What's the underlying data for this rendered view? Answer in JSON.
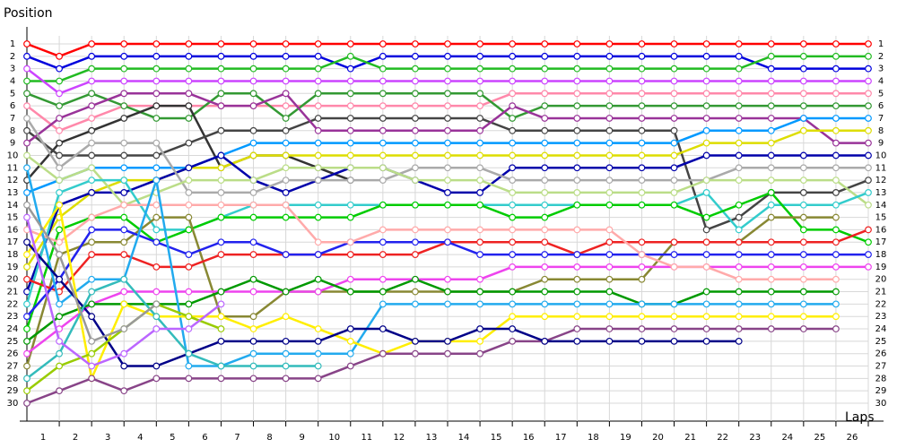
{
  "chart_data": {
    "type": "line",
    "y_axis_title": "Position",
    "x_axis_title": "Laps",
    "xlim": [
      0,
      26
    ],
    "xticks": [
      1,
      2,
      3,
      4,
      5,
      6,
      7,
      8,
      9,
      10,
      11,
      12,
      13,
      14,
      15,
      16,
      17,
      18,
      19,
      20,
      21,
      22,
      23,
      24,
      25,
      26
    ],
    "ylim": [
      1,
      30
    ],
    "y_reversed": true,
    "yticks": [
      1,
      2,
      3,
      4,
      5,
      6,
      7,
      8,
      9,
      10,
      11,
      12,
      13,
      14,
      15,
      16,
      17,
      18,
      19,
      20,
      21,
      22,
      23,
      24,
      25,
      26,
      27,
      28,
      29,
      30
    ],
    "grid": true,
    "series": [
      {
        "color": "#ff0000",
        "values": [
          1,
          2,
          1,
          1,
          1,
          1,
          1,
          1,
          1,
          1,
          1,
          1,
          1,
          1,
          1,
          1,
          1,
          1,
          1,
          1,
          1,
          1,
          1,
          1,
          1,
          1,
          1
        ]
      },
      {
        "color": "#0000dd",
        "values": [
          2,
          3,
          2,
          2,
          2,
          2,
          2,
          2,
          2,
          2,
          3,
          2,
          2,
          2,
          2,
          2,
          2,
          2,
          2,
          2,
          2,
          2,
          2,
          3,
          3,
          3,
          3
        ]
      },
      {
        "color": "#22bb22",
        "values": [
          4,
          4,
          3,
          3,
          3,
          3,
          3,
          3,
          3,
          3,
          2,
          3,
          3,
          3,
          3,
          3,
          3,
          3,
          3,
          3,
          3,
          3,
          3,
          2,
          2,
          2,
          2
        ]
      },
      {
        "color": "#cc44ff",
        "values": [
          3,
          5,
          4,
          4,
          4,
          4,
          4,
          4,
          4,
          4,
          4,
          4,
          4,
          4,
          4,
          4,
          4,
          4,
          4,
          4,
          4,
          4,
          4,
          4,
          4,
          4,
          4
        ]
      },
      {
        "color": "#ff88aa",
        "values": [
          6,
          8,
          7,
          6,
          6,
          6,
          6,
          6,
          6,
          6,
          6,
          6,
          6,
          6,
          6,
          5,
          5,
          5,
          5,
          5,
          5,
          5,
          5,
          5,
          5,
          5,
          5
        ]
      },
      {
        "color": "#339933",
        "values": [
          5,
          6,
          5,
          6,
          7,
          7,
          5,
          5,
          7,
          5,
          5,
          5,
          5,
          5,
          5,
          7,
          6,
          6,
          6,
          6,
          6,
          6,
          6,
          6,
          6,
          6,
          6
        ]
      },
      {
        "color": "#333333",
        "values": [
          12,
          9,
          8,
          7,
          6,
          6,
          11,
          10,
          10,
          11,
          12,
          null,
          null,
          null,
          null,
          null,
          null,
          null,
          null,
          null,
          null,
          null,
          null,
          null,
          null,
          null,
          null
        ]
      },
      {
        "color": "#444444",
        "values": [
          8,
          10,
          10,
          10,
          10,
          9,
          8,
          8,
          8,
          7,
          7,
          7,
          7,
          7,
          7,
          8,
          8,
          8,
          8,
          8,
          8,
          16,
          15,
          13,
          13,
          13,
          12
        ]
      },
      {
        "color": "#993399",
        "values": [
          9,
          7,
          6,
          5,
          5,
          5,
          6,
          6,
          5,
          8,
          8,
          8,
          8,
          8,
          8,
          6,
          7,
          7,
          7,
          7,
          7,
          7,
          7,
          7,
          7,
          9,
          9
        ]
      },
      {
        "color": "#0099ff",
        "values": [
          13,
          12,
          11,
          11,
          11,
          11,
          10,
          9,
          9,
          9,
          9,
          9,
          9,
          9,
          9,
          9,
          9,
          9,
          9,
          9,
          9,
          8,
          8,
          8,
          7,
          7,
          7
        ]
      },
      {
        "color": "#dddd00",
        "values": [
          19,
          15,
          13,
          12,
          12,
          11,
          11,
          10,
          10,
          10,
          10,
          10,
          10,
          10,
          10,
          10,
          10,
          10,
          10,
          10,
          10,
          9,
          9,
          9,
          8,
          8,
          8
        ]
      },
      {
        "color": "#0000aa",
        "values": [
          21,
          14,
          13,
          13,
          12,
          11,
          10,
          12,
          13,
          12,
          11,
          11,
          12,
          13,
          13,
          11,
          11,
          11,
          11,
          11,
          11,
          10,
          10,
          10,
          10,
          10,
          10
        ]
      },
      {
        "color": "#aaaaaa",
        "values": [
          7,
          11,
          9,
          9,
          9,
          13,
          13,
          13,
          12,
          12,
          12,
          12,
          11,
          11,
          11,
          12,
          12,
          12,
          12,
          12,
          12,
          12,
          11,
          11,
          11,
          11,
          11
        ]
      },
      {
        "color": "#bbdd88",
        "values": [
          10,
          12,
          11,
          14,
          13,
          12,
          12,
          12,
          11,
          11,
          11,
          11,
          12,
          12,
          12,
          13,
          13,
          13,
          13,
          13,
          13,
          12,
          12,
          12,
          12,
          12,
          14
        ]
      },
      {
        "color": "#33cccc",
        "values": [
          22,
          13,
          12,
          12,
          16,
          16,
          15,
          14,
          14,
          14,
          14,
          14,
          14,
          14,
          14,
          14,
          14,
          14,
          14,
          14,
          14,
          13,
          16,
          14,
          14,
          14,
          13
        ]
      },
      {
        "color": "#00cc00",
        "values": [
          24,
          16,
          15,
          15,
          17,
          16,
          15,
          15,
          15,
          15,
          15,
          14,
          14,
          14,
          14,
          15,
          15,
          14,
          14,
          14,
          14,
          15,
          14,
          13,
          16,
          16,
          17
        ]
      },
      {
        "color": "#888833",
        "values": [
          27,
          18,
          17,
          17,
          15,
          15,
          23,
          23,
          21,
          21,
          21,
          21,
          21,
          21,
          21,
          21,
          20,
          20,
          20,
          20,
          17,
          17,
          17,
          15,
          15,
          15,
          null
        ]
      },
      {
        "color": "#ee2222",
        "values": [
          20,
          21,
          18,
          18,
          19,
          19,
          18,
          18,
          18,
          18,
          18,
          18,
          18,
          17,
          17,
          17,
          17,
          18,
          17,
          17,
          17,
          17,
          17,
          17,
          17,
          17,
          16
        ]
      },
      {
        "color": "#2222ee",
        "values": [
          23,
          20,
          16,
          16,
          17,
          18,
          17,
          17,
          18,
          18,
          17,
          17,
          17,
          17,
          18,
          18,
          18,
          18,
          18,
          18,
          18,
          18,
          18,
          18,
          18,
          18,
          18
        ]
      },
      {
        "color": "#ee44ee",
        "values": [
          26,
          24,
          22,
          21,
          21,
          21,
          21,
          21,
          21,
          21,
          20,
          20,
          20,
          20,
          20,
          19,
          19,
          19,
          19,
          19,
          19,
          19,
          19,
          19,
          19,
          19,
          19
        ]
      },
      {
        "color": "#ffaaaa",
        "values": [
          16,
          17,
          15,
          14,
          14,
          14,
          14,
          14,
          14,
          17,
          17,
          16,
          16,
          16,
          16,
          16,
          16,
          16,
          16,
          18,
          19,
          19,
          20,
          20,
          20,
          20,
          null
        ]
      },
      {
        "color": "#009900",
        "values": [
          25,
          23,
          22,
          22,
          22,
          22,
          21,
          20,
          21,
          20,
          21,
          21,
          20,
          21,
          21,
          21,
          21,
          21,
          21,
          22,
          22,
          21,
          21,
          21,
          21,
          21,
          null
        ]
      },
      {
        "color": "#22aaee",
        "values": [
          11,
          22,
          20,
          20,
          12,
          27,
          27,
          26,
          26,
          26,
          26,
          22,
          22,
          22,
          22,
          22,
          22,
          22,
          22,
          22,
          22,
          22,
          22,
          22,
          22,
          22,
          null
        ]
      },
      {
        "color": "#ffee00",
        "values": [
          18,
          14,
          28,
          22,
          23,
          23,
          23,
          24,
          23,
          24,
          25,
          26,
          25,
          25,
          25,
          23,
          23,
          23,
          23,
          23,
          23,
          23,
          23,
          23,
          23,
          23,
          null
        ]
      },
      {
        "color": "#884488",
        "values": [
          30,
          29,
          28,
          29,
          28,
          28,
          28,
          28,
          28,
          28,
          27,
          26,
          26,
          26,
          26,
          25,
          25,
          24,
          24,
          24,
          24,
          24,
          24,
          24,
          24,
          24,
          null
        ]
      },
      {
        "color": "#000088",
        "values": [
          17,
          20,
          23,
          27,
          27,
          26,
          25,
          25,
          25,
          25,
          24,
          24,
          25,
          25,
          24,
          24,
          25,
          25,
          25,
          25,
          25,
          25,
          25,
          null,
          null,
          null,
          null
        ]
      },
      {
        "color": "#33bbbb",
        "values": [
          28,
          26,
          21,
          20,
          23,
          26,
          27,
          27,
          27,
          27,
          null,
          null,
          null,
          null,
          null,
          null,
          null,
          null,
          null,
          null,
          null,
          null,
          null,
          null,
          null,
          null,
          null
        ]
      },
      {
        "color": "#99cc00",
        "values": [
          29,
          27,
          26,
          24,
          22,
          23,
          24,
          null,
          null,
          null,
          null,
          null,
          null,
          null,
          null,
          null,
          null,
          null,
          null,
          null,
          null,
          null,
          null,
          null,
          null,
          null,
          null
        ]
      },
      {
        "color": "#999999",
        "values": [
          14,
          18,
          25,
          24,
          22,
          null,
          null,
          null,
          null,
          null,
          null,
          null,
          null,
          null,
          null,
          null,
          null,
          null,
          null,
          null,
          null,
          null,
          null,
          null,
          null,
          null,
          null
        ]
      },
      {
        "color": "#bb66ff",
        "values": [
          15,
          25,
          27,
          26,
          24,
          24,
          22,
          null,
          null,
          null,
          null,
          null,
          null,
          null,
          null,
          null,
          null,
          null,
          null,
          null,
          null,
          null,
          null,
          null,
          null,
          null,
          null
        ]
      }
    ]
  }
}
